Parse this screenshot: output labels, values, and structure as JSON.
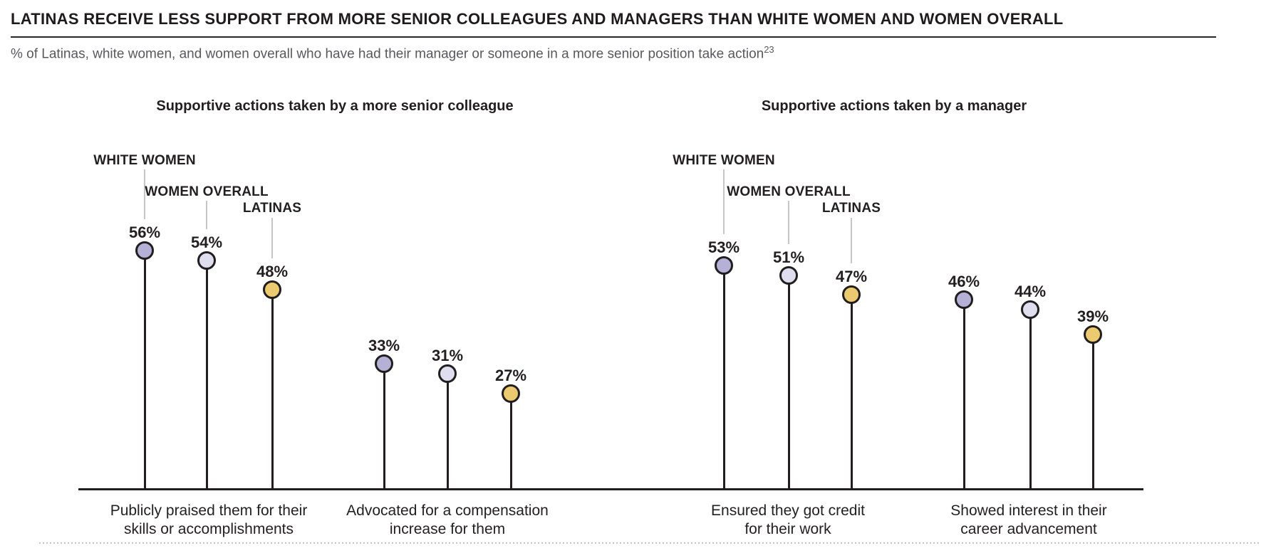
{
  "chart_data": {
    "type": "lollipop",
    "title": "LATINAS RECEIVE LESS SUPPORT FROM MORE SENIOR COLLEAGUES AND MANAGERS THAN WHITE WOMEN AND WOMEN OVERALL",
    "subtitle": "% of Latinas, white women, and women overall who have had their manager or someone in a more senior position take action",
    "footnote_marker": "23",
    "unit": "%",
    "series": [
      "WHITE WOMEN",
      "WOMEN OVERALL",
      "LATINAS"
    ],
    "series_colors": [
      "#b5b0d6",
      "#dedeef",
      "#ecca70"
    ],
    "stem_color": "#221e1f",
    "leader_line_color": "#c6c6c6",
    "panels": [
      {
        "title": "Supportive actions taken by a more senior colleague",
        "groups": [
          {
            "category_lines": [
              "Publicly praised them for their",
              "skills or accomplishments"
            ],
            "values": [
              56,
              54,
              48
            ]
          },
          {
            "category_lines": [
              "Advocated for a compensation",
              "increase for them"
            ],
            "values": [
              33,
              31,
              27
            ]
          }
        ]
      },
      {
        "title": "Supportive actions taken by a manager",
        "groups": [
          {
            "category_lines": [
              "Ensured they got credit",
              "for their work"
            ],
            "values": [
              53,
              51,
              47
            ]
          },
          {
            "category_lines": [
              "Showed interest in their",
              "career advancement"
            ],
            "values": [
              46,
              44,
              39
            ]
          }
        ]
      }
    ],
    "axis": {
      "baseline_visible": true,
      "value_labels_shown": true,
      "gridlines": false,
      "legend": "leader-line labels above first group of each panel"
    }
  }
}
